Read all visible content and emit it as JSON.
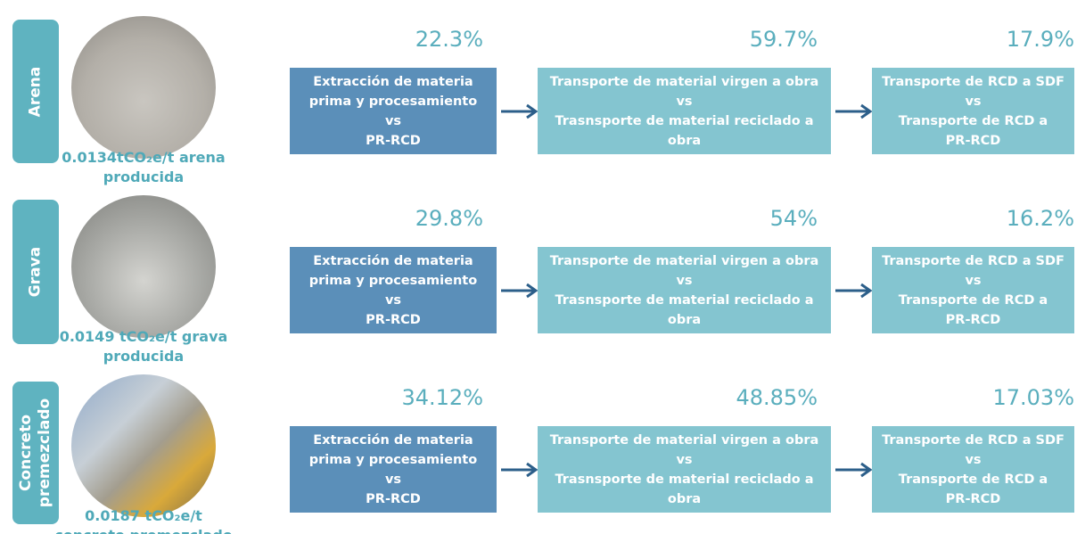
{
  "rows": [
    {
      "label": [
        "Arena"
      ],
      "caption": [
        "0.0134tCO₂e/t arena",
        "producida"
      ],
      "steps": [
        {
          "percent": "22.3%",
          "lines": [
            "Extracción de materia",
            "prima y procesamiento",
            "vs",
            "PR-RCD"
          ]
        },
        {
          "percent": "59.7%",
          "lines": [
            "Transporte de material virgen a obra",
            "vs",
            "Trasnsporte de material reciclado a",
            "obra"
          ]
        },
        {
          "percent": "17.9%",
          "lines": [
            "Transporte de RCD a SDF",
            "vs",
            "Transporte de RCD a",
            "PR-RCD"
          ]
        }
      ]
    },
    {
      "label": [
        "Grava"
      ],
      "caption": [
        "0.0149 tCO₂e/t grava",
        "producida"
      ],
      "steps": [
        {
          "percent": "29.8%",
          "lines": [
            "Extracción de materia",
            "prima y procesamiento",
            "vs",
            "PR-RCD"
          ]
        },
        {
          "percent": "54%",
          "lines": [
            "Transporte de material virgen a obra",
            "vs",
            "Trasnsporte de material reciclado a",
            "obra"
          ]
        },
        {
          "percent": "16.2%",
          "lines": [
            "Transporte de RCD a SDF",
            "vs",
            "Transporte de RCD a",
            "PR-RCD"
          ]
        }
      ]
    },
    {
      "label": [
        "Concreto",
        "premezclado"
      ],
      "caption": [
        "0.0187 tCO₂e/t",
        "concreto premezclado"
      ],
      "steps": [
        {
          "percent": "34.12%",
          "lines": [
            "Extracción de materia",
            "prima y procesamiento",
            "vs",
            "PR-RCD"
          ]
        },
        {
          "percent": "48.85%",
          "lines": [
            "Transporte de material virgen a obra",
            "vs",
            "Trasnsporte de material reciclado a",
            "obra"
          ]
        },
        {
          "percent": "17.03%",
          "lines": [
            "Transporte de RCD a SDF",
            "vs",
            "Transporte de RCD a",
            "PR-RCD"
          ]
        }
      ]
    }
  ]
}
